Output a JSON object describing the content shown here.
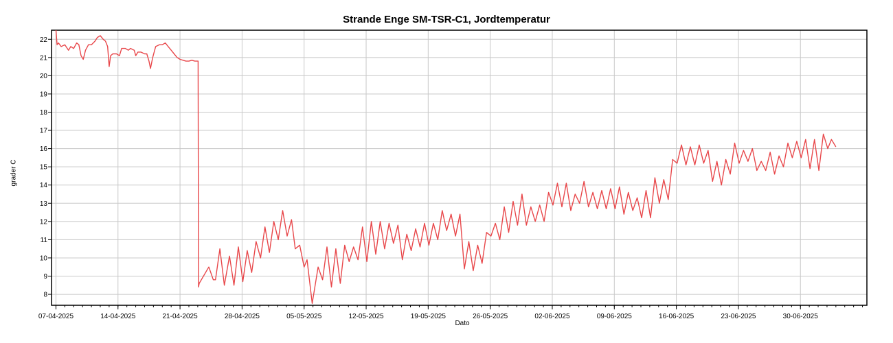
{
  "chart_data": {
    "type": "line",
    "title": "Strande Enge SM-TSR-C1, Jordtemperatur",
    "xlabel": "Dato",
    "ylabel": "grader C",
    "x_type": "date",
    "xlim": [
      "2025-04-06T12:00",
      "2025-07-07T12:00"
    ],
    "ylim": [
      7.4,
      22.5
    ],
    "x_ticks": [
      "07-04-2025",
      "14-04-2025",
      "21-04-2025",
      "28-04-2025",
      "05-05-2025",
      "12-05-2025",
      "19-05-2025",
      "26-05-2025",
      "02-06-2025",
      "09-06-2025",
      "16-06-2025",
      "23-06-2025",
      "30-06-2025"
    ],
    "y_ticks": [
      8,
      9,
      10,
      11,
      12,
      13,
      14,
      15,
      16,
      17,
      18,
      19,
      20,
      21,
      22
    ],
    "grid": true,
    "color": "#e8474a",
    "series": [
      {
        "name": "",
        "points": [
          [
            "2025-04-07T00:00",
            22.5
          ],
          [
            "2025-04-07T03:00",
            21.7
          ],
          [
            "2025-04-07T07:00",
            21.8
          ],
          [
            "2025-04-07T14:00",
            21.6
          ],
          [
            "2025-04-08T00:00",
            21.7
          ],
          [
            "2025-04-08T10:00",
            21.4
          ],
          [
            "2025-04-08T16:00",
            21.6
          ],
          [
            "2025-04-09T00:00",
            21.5
          ],
          [
            "2025-04-09T08:00",
            21.8
          ],
          [
            "2025-04-09T14:00",
            21.7
          ],
          [
            "2025-04-09T20:00",
            21.1
          ],
          [
            "2025-04-10T02:00",
            20.9
          ],
          [
            "2025-04-10T08:00",
            21.4
          ],
          [
            "2025-04-10T16:00",
            21.7
          ],
          [
            "2025-04-11T00:00",
            21.7
          ],
          [
            "2025-04-11T10:00",
            21.9
          ],
          [
            "2025-04-11T16:00",
            22.1
          ],
          [
            "2025-04-12T00:00",
            22.2
          ],
          [
            "2025-04-12T08:00",
            22.0
          ],
          [
            "2025-04-12T14:00",
            21.9
          ],
          [
            "2025-04-12T20:00",
            21.6
          ],
          [
            "2025-04-13T00:00",
            20.5
          ],
          [
            "2025-04-13T04:00",
            21.1
          ],
          [
            "2025-04-13T10:00",
            21.2
          ],
          [
            "2025-04-13T20:00",
            21.2
          ],
          [
            "2025-04-14T04:00",
            21.1
          ],
          [
            "2025-04-14T10:00",
            21.5
          ],
          [
            "2025-04-14T20:00",
            21.5
          ],
          [
            "2025-04-15T04:00",
            21.4
          ],
          [
            "2025-04-15T10:00",
            21.5
          ],
          [
            "2025-04-15T20:00",
            21.4
          ],
          [
            "2025-04-16T00:00",
            21.1
          ],
          [
            "2025-04-16T06:00",
            21.3
          ],
          [
            "2025-04-16T14:00",
            21.3
          ],
          [
            "2025-04-17T00:00",
            21.2
          ],
          [
            "2025-04-17T06:00",
            21.2
          ],
          [
            "2025-04-17T12:00",
            20.8
          ],
          [
            "2025-04-17T16:00",
            20.4
          ],
          [
            "2025-04-17T22:00",
            21.0
          ],
          [
            "2025-04-18T06:00",
            21.6
          ],
          [
            "2025-04-18T16:00",
            21.7
          ],
          [
            "2025-04-19T00:00",
            21.7
          ],
          [
            "2025-04-19T08:00",
            21.8
          ],
          [
            "2025-04-19T16:00",
            21.6
          ],
          [
            "2025-04-20T00:00",
            21.4
          ],
          [
            "2025-04-20T08:00",
            21.2
          ],
          [
            "2025-04-20T16:00",
            21.0
          ],
          [
            "2025-04-21T00:00",
            20.9
          ],
          [
            "2025-04-21T08:00",
            20.85
          ],
          [
            "2025-04-21T16:00",
            20.8
          ],
          [
            "2025-04-22T00:00",
            20.8
          ],
          [
            "2025-04-22T08:00",
            20.85
          ],
          [
            "2025-04-22T16:00",
            20.8
          ],
          [
            "2025-04-22T20:00",
            20.8
          ],
          [
            "2025-04-23T01:00",
            20.8
          ],
          [
            "2025-04-23T02:00",
            8.4
          ],
          [
            "2025-04-23T04:00",
            8.6
          ],
          [
            "2025-04-24T06:00",
            9.5
          ],
          [
            "2025-04-24T18:00",
            8.8
          ],
          [
            "2025-04-25T00:00",
            8.8
          ],
          [
            "2025-04-25T12:00",
            10.5
          ],
          [
            "2025-04-26T00:00",
            8.5
          ],
          [
            "2025-04-26T14:00",
            10.1
          ],
          [
            "2025-04-27T02:00",
            8.5
          ],
          [
            "2025-04-27T14:00",
            10.6
          ],
          [
            "2025-04-28T02:00",
            8.7
          ],
          [
            "2025-04-28T14:00",
            10.4
          ],
          [
            "2025-04-29T02:00",
            9.2
          ],
          [
            "2025-04-29T14:00",
            10.9
          ],
          [
            "2025-04-30T02:00",
            10.0
          ],
          [
            "2025-04-30T14:00",
            11.7
          ],
          [
            "2025-05-01T02:00",
            10.3
          ],
          [
            "2025-05-01T14:00",
            12.0
          ],
          [
            "2025-05-02T02:00",
            11.0
          ],
          [
            "2025-05-02T14:00",
            12.6
          ],
          [
            "2025-05-03T02:00",
            11.2
          ],
          [
            "2025-05-03T14:00",
            12.1
          ],
          [
            "2025-05-04T00:00",
            10.5
          ],
          [
            "2025-05-04T12:00",
            10.7
          ],
          [
            "2025-05-05T00:00",
            9.5
          ],
          [
            "2025-05-05T08:00",
            9.9
          ],
          [
            "2025-05-05T22:00",
            7.5
          ],
          [
            "2025-05-06T14:00",
            9.5
          ],
          [
            "2025-05-07T02:00",
            8.8
          ],
          [
            "2025-05-07T14:00",
            10.6
          ],
          [
            "2025-05-08T02:00",
            8.4
          ],
          [
            "2025-05-08T14:00",
            10.5
          ],
          [
            "2025-05-09T02:00",
            8.6
          ],
          [
            "2025-05-09T14:00",
            10.7
          ],
          [
            "2025-05-10T02:00",
            9.8
          ],
          [
            "2025-05-10T14:00",
            10.6
          ],
          [
            "2025-05-11T02:00",
            9.9
          ],
          [
            "2025-05-11T14:00",
            11.7
          ],
          [
            "2025-05-12T02:00",
            9.8
          ],
          [
            "2025-05-12T14:00",
            12.0
          ],
          [
            "2025-05-13T02:00",
            10.2
          ],
          [
            "2025-05-13T14:00",
            12.0
          ],
          [
            "2025-05-14T02:00",
            10.5
          ],
          [
            "2025-05-14T14:00",
            11.9
          ],
          [
            "2025-05-15T02:00",
            10.8
          ],
          [
            "2025-05-15T14:00",
            11.8
          ],
          [
            "2025-05-16T02:00",
            9.9
          ],
          [
            "2025-05-16T14:00",
            11.3
          ],
          [
            "2025-05-17T02:00",
            10.4
          ],
          [
            "2025-05-17T14:00",
            11.6
          ],
          [
            "2025-05-18T02:00",
            10.6
          ],
          [
            "2025-05-18T14:00",
            11.9
          ],
          [
            "2025-05-19T02:00",
            10.7
          ],
          [
            "2025-05-19T14:00",
            11.9
          ],
          [
            "2025-05-20T02:00",
            11.0
          ],
          [
            "2025-05-20T14:00",
            12.6
          ],
          [
            "2025-05-21T02:00",
            11.5
          ],
          [
            "2025-05-21T14:00",
            12.4
          ],
          [
            "2025-05-22T02:00",
            11.2
          ],
          [
            "2025-05-22T14:00",
            12.4
          ],
          [
            "2025-05-23T02:00",
            9.4
          ],
          [
            "2025-05-23T14:00",
            10.9
          ],
          [
            "2025-05-24T02:00",
            9.3
          ],
          [
            "2025-05-24T14:00",
            10.7
          ],
          [
            "2025-05-25T02:00",
            9.7
          ],
          [
            "2025-05-25T14:00",
            11.4
          ],
          [
            "2025-05-26T02:00",
            11.2
          ],
          [
            "2025-05-26T14:00",
            11.9
          ],
          [
            "2025-05-27T02:00",
            11.0
          ],
          [
            "2025-05-27T14:00",
            12.8
          ],
          [
            "2025-05-28T02:00",
            11.4
          ],
          [
            "2025-05-28T14:00",
            13.1
          ],
          [
            "2025-05-29T02:00",
            11.8
          ],
          [
            "2025-05-29T14:00",
            13.5
          ],
          [
            "2025-05-30T02:00",
            11.8
          ],
          [
            "2025-05-30T14:00",
            12.8
          ],
          [
            "2025-05-31T02:00",
            12.0
          ],
          [
            "2025-05-31T14:00",
            12.9
          ],
          [
            "2025-06-01T02:00",
            12.0
          ],
          [
            "2025-06-01T14:00",
            13.6
          ],
          [
            "2025-06-02T02:00",
            12.9
          ],
          [
            "2025-06-02T14:00",
            14.1
          ],
          [
            "2025-06-03T02:00",
            12.8
          ],
          [
            "2025-06-03T14:00",
            14.1
          ],
          [
            "2025-06-04T02:00",
            12.6
          ],
          [
            "2025-06-04T14:00",
            13.5
          ],
          [
            "2025-06-05T02:00",
            13.0
          ],
          [
            "2025-06-05T14:00",
            14.2
          ],
          [
            "2025-06-06T02:00",
            12.8
          ],
          [
            "2025-06-06T14:00",
            13.6
          ],
          [
            "2025-06-07T02:00",
            12.7
          ],
          [
            "2025-06-07T14:00",
            13.7
          ],
          [
            "2025-06-08T02:00",
            12.7
          ],
          [
            "2025-06-08T14:00",
            13.8
          ],
          [
            "2025-06-09T02:00",
            12.7
          ],
          [
            "2025-06-09T14:00",
            13.9
          ],
          [
            "2025-06-10T02:00",
            12.4
          ],
          [
            "2025-06-10T14:00",
            13.6
          ],
          [
            "2025-06-11T02:00",
            12.6
          ],
          [
            "2025-06-11T14:00",
            13.3
          ],
          [
            "2025-06-12T02:00",
            12.2
          ],
          [
            "2025-06-12T14:00",
            13.7
          ],
          [
            "2025-06-13T02:00",
            12.2
          ],
          [
            "2025-06-13T14:00",
            14.4
          ],
          [
            "2025-06-14T02:00",
            13.0
          ],
          [
            "2025-06-14T14:00",
            14.3
          ],
          [
            "2025-06-15T02:00",
            13.2
          ],
          [
            "2025-06-15T14:00",
            15.4
          ],
          [
            "2025-06-16T02:00",
            15.2
          ],
          [
            "2025-06-16T14:00",
            16.2
          ],
          [
            "2025-06-17T02:00",
            15.1
          ],
          [
            "2025-06-17T14:00",
            16.1
          ],
          [
            "2025-06-18T02:00",
            15.1
          ],
          [
            "2025-06-18T14:00",
            16.2
          ],
          [
            "2025-06-19T02:00",
            15.2
          ],
          [
            "2025-06-19T14:00",
            15.9
          ],
          [
            "2025-06-20T02:00",
            14.2
          ],
          [
            "2025-06-20T14:00",
            15.3
          ],
          [
            "2025-06-21T02:00",
            14.0
          ],
          [
            "2025-06-21T14:00",
            15.4
          ],
          [
            "2025-06-22T02:00",
            14.6
          ],
          [
            "2025-06-22T14:00",
            16.3
          ],
          [
            "2025-06-23T02:00",
            15.2
          ],
          [
            "2025-06-23T14:00",
            15.9
          ],
          [
            "2025-06-24T02:00",
            15.3
          ],
          [
            "2025-06-24T14:00",
            16.0
          ],
          [
            "2025-06-25T02:00",
            14.8
          ],
          [
            "2025-06-25T14:00",
            15.3
          ],
          [
            "2025-06-26T02:00",
            14.8
          ],
          [
            "2025-06-26T14:00",
            15.8
          ],
          [
            "2025-06-27T02:00",
            14.6
          ],
          [
            "2025-06-27T14:00",
            15.6
          ],
          [
            "2025-06-28T02:00",
            15.0
          ],
          [
            "2025-06-28T14:00",
            16.3
          ],
          [
            "2025-06-29T02:00",
            15.5
          ],
          [
            "2025-06-29T14:00",
            16.4
          ],
          [
            "2025-06-30T02:00",
            15.5
          ],
          [
            "2025-06-30T14:00",
            16.5
          ],
          [
            "2025-07-01T02:00",
            14.9
          ],
          [
            "2025-07-01T14:00",
            16.5
          ],
          [
            "2025-07-02T02:00",
            14.8
          ],
          [
            "2025-07-02T14:00",
            16.8
          ],
          [
            "2025-07-03T02:00",
            16.0
          ],
          [
            "2025-07-03T12:00",
            16.5
          ],
          [
            "2025-07-04T00:00",
            16.1
          ]
        ]
      }
    ]
  }
}
